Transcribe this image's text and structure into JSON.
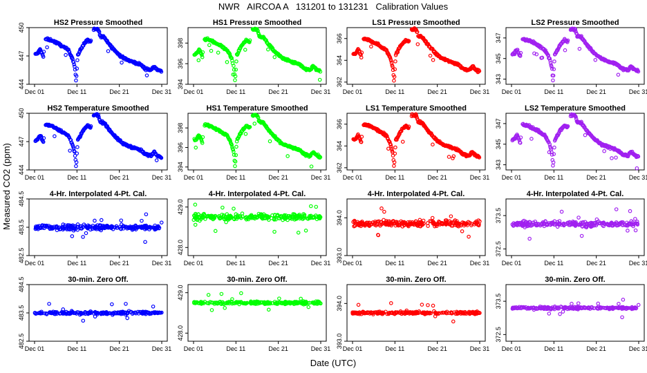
{
  "figure": {
    "title": "NWR   AIRCOA A   131201 to 131231   Calibration Values",
    "xlabel": "Date (UTC)",
    "ylabel": "Measured CO2 (ppm)"
  },
  "colors": {
    "HS2": "#0000ff",
    "HS1": "#00ff00",
    "LS1": "#ff0000",
    "LS2": "#a020f0"
  },
  "x_tick_labels": [
    "Dec 01",
    "Dec 11",
    "Dec 21",
    "Dec 31"
  ],
  "chart_data": [
    {
      "type": "scatter",
      "title": "HS2 Pressure Smoothed",
      "series": "HS2",
      "kind": "trend",
      "ylim": [
        444,
        450
      ],
      "yticks": [
        "444",
        "447",
        "450"
      ]
    },
    {
      "type": "scatter",
      "title": "HS1 Pressure Smoothed",
      "series": "HS1",
      "kind": "trend",
      "ylim": [
        394,
        399.5
      ],
      "yticks": [
        "394",
        "396",
        "398"
      ]
    },
    {
      "type": "scatter",
      "title": "LS1 Pressure Smoothed",
      "series": "LS1",
      "kind": "trend",
      "ylim": [
        361.8,
        367
      ],
      "yticks": [
        "362",
        "364",
        "366"
      ]
    },
    {
      "type": "scatter",
      "title": "LS2 Pressure Smoothed",
      "series": "LS2",
      "kind": "trend",
      "ylim": [
        342.5,
        348
      ],
      "yticks": [
        "343",
        "345",
        "347"
      ]
    },
    {
      "type": "scatter",
      "title": "HS2 Temperature Smoothed",
      "series": "HS2",
      "kind": "trend",
      "ylim": [
        444,
        450
      ],
      "yticks": [
        "444",
        "447",
        "450"
      ]
    },
    {
      "type": "scatter",
      "title": "HS1 Temperature Smoothed",
      "series": "HS1",
      "kind": "trend",
      "ylim": [
        393.7,
        399.5
      ],
      "yticks": [
        "394",
        "396",
        "398"
      ]
    },
    {
      "type": "scatter",
      "title": "LS1 Temperature Smoothed",
      "series": "LS1",
      "kind": "trend",
      "ylim": [
        361.8,
        367
      ],
      "yticks": [
        "362",
        "364",
        "366"
      ]
    },
    {
      "type": "scatter",
      "title": "LS2 Temperature Smoothed",
      "series": "LS2",
      "kind": "trend",
      "ylim": [
        342.5,
        348
      ],
      "yticks": [
        "343",
        "345",
        "347"
      ]
    },
    {
      "type": "scatter",
      "title": "4-Hr. Interpolated 4-Pt. Cal.",
      "series": "HS2",
      "kind": "flat",
      "ylim": [
        482.5,
        484.5
      ],
      "yticks": [
        "482.5",
        "483.5",
        "484.5"
      ],
      "center": 483.5
    },
    {
      "type": "scatter",
      "title": "4-Hr. Interpolated 4-Pt. Cal.",
      "series": "HS1",
      "kind": "flat",
      "ylim": [
        427.8,
        429.2
      ],
      "yticks": [
        "428.0",
        "429.0"
      ],
      "center": 428.75
    },
    {
      "type": "scatter",
      "title": "4-Hr. Interpolated 4-Pt. Cal.",
      "series": "LS1",
      "kind": "flat",
      "ylim": [
        393.0,
        394.5
      ],
      "yticks": [
        "393.0",
        "394.0"
      ],
      "center": 393.85
    },
    {
      "type": "scatter",
      "title": "4-Hr. Interpolated 4-Pt. Cal.",
      "series": "LS2",
      "kind": "flat",
      "ylim": [
        372.3,
        374.0
      ],
      "yticks": [
        "372.5",
        "373.5"
      ],
      "center": 373.25
    },
    {
      "type": "scatter",
      "title": "30-min. Zero Off.",
      "series": "HS2",
      "kind": "flat",
      "ylim": [
        482.5,
        484.5
      ],
      "yticks": [
        "482.5",
        "483.5",
        "484.5"
      ],
      "center": 483.5
    },
    {
      "type": "scatter",
      "title": "30-min. Zero Off.",
      "series": "HS1",
      "kind": "flat",
      "ylim": [
        427.8,
        429.2
      ],
      "yticks": [
        "428.0",
        "429.0"
      ],
      "center": 428.75
    },
    {
      "type": "scatter",
      "title": "30-min. Zero Off.",
      "series": "LS1",
      "kind": "flat",
      "ylim": [
        393.0,
        394.5
      ],
      "yticks": [
        "393.0",
        "394.0"
      ],
      "center": 393.75
    },
    {
      "type": "scatter",
      "title": "30-min. Zero Off.",
      "series": "LS2",
      "kind": "flat",
      "ylim": [
        372.3,
        374.0
      ],
      "yticks": [
        "372.5",
        "373.5"
      ],
      "center": 373.3
    }
  ]
}
